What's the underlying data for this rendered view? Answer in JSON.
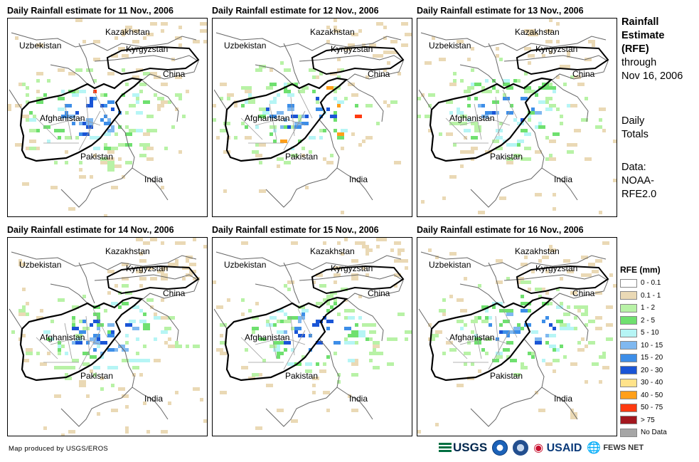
{
  "panels": [
    {
      "title": "Daily Rainfall estimate for 11 Nov., 2006",
      "intensity": 1.0
    },
    {
      "title": "Daily Rainfall estimate for 12 Nov., 2006",
      "intensity": 0.8
    },
    {
      "title": "Daily Rainfall estimate for 13 Nov., 2006",
      "intensity": 0.45
    },
    {
      "title": "Daily Rainfall estimate for 14 Nov., 2006",
      "intensity": 0.6
    },
    {
      "title": "Daily Rainfall estimate for 15 Nov., 2006",
      "intensity": 0.9
    },
    {
      "title": "Daily Rainfall estimate for 16 Nov., 2006",
      "intensity": 0.7
    }
  ],
  "map_labels": {
    "kazakhstan": "Kazakhstan",
    "uzbekistan": "Uzbekistan",
    "kyrgyzstan": "Kyrgyzstan",
    "china": "China",
    "afghanistan": "Afghanistan",
    "pakistan": "Pakistan",
    "india": "India"
  },
  "side": {
    "heading1": "Rainfall",
    "heading2": "Estimate",
    "heading3": "(RFE)",
    "through": "through",
    "date": "Nov 16, 2006",
    "totals1": "Daily",
    "totals2": "Totals",
    "data1": "Data:",
    "data2": "NOAA-",
    "data3": "RFE2.0"
  },
  "legend": {
    "title": "RFE (mm)",
    "items": [
      {
        "label": "0 - 0.1",
        "color": "#ffffff"
      },
      {
        "label": "0.1 - 1",
        "color": "#ead9b5"
      },
      {
        "label": "1 - 2",
        "color": "#b8f2a6"
      },
      {
        "label": "2 - 5",
        "color": "#6fe06f"
      },
      {
        "label": "5 - 10",
        "color": "#b6f5f5"
      },
      {
        "label": "10 - 15",
        "color": "#7fb8f0"
      },
      {
        "label": "15 - 20",
        "color": "#3d8ee8"
      },
      {
        "label": "20 - 30",
        "color": "#1a55d6"
      },
      {
        "label": "30 - 40",
        "color": "#ffe38a"
      },
      {
        "label": "40 - 50",
        "color": "#ff9f1a"
      },
      {
        "label": "50 - 75",
        "color": "#ff3a10"
      },
      {
        "label": "> 75",
        "color": "#a3171e"
      },
      {
        "label": "No Data",
        "color": "#a6a6a6"
      }
    ]
  },
  "credit": "Map produced by USGS/EROS",
  "logos": {
    "usgs": "USGS",
    "usaid": "USAID",
    "fews": "FEWS NET"
  }
}
